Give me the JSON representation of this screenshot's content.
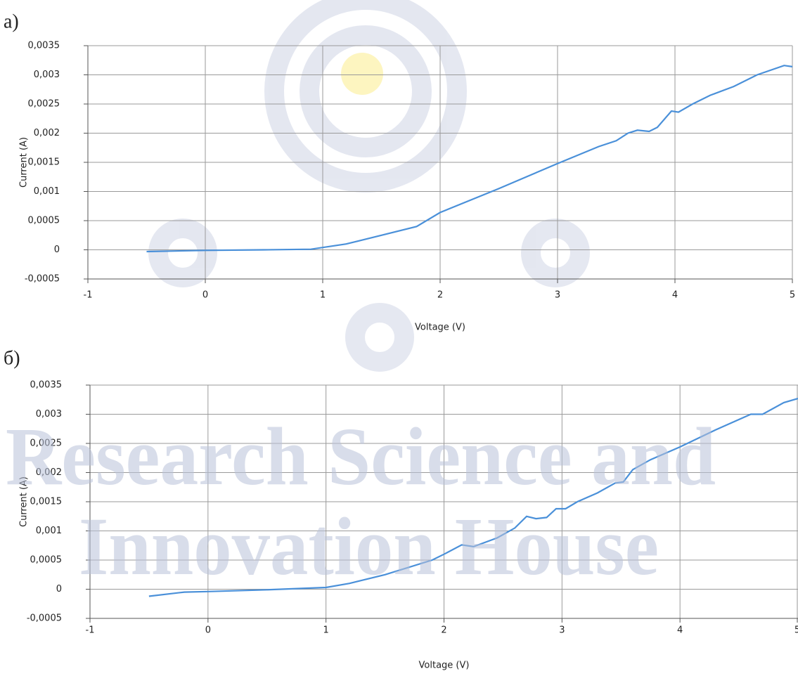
{
  "chart_data": [
    {
      "type": "line",
      "panel_label": "а)",
      "x_label": "Voltage (V)",
      "y_label": "Current (A)",
      "xlim": [
        -1,
        5
      ],
      "ylim": [
        -0.0005,
        0.0035
      ],
      "xticks": [
        -1,
        0,
        1,
        2,
        3,
        4,
        5
      ],
      "yticks": [
        {
          "value": -0.0005,
          "label": "-0,0005"
        },
        0,
        {
          "value": 0.0005,
          "label": "0,0005"
        },
        {
          "value": 0.001,
          "label": "0,001"
        },
        {
          "value": 0.0015,
          "label": "0,0015"
        },
        {
          "value": 0.002,
          "label": "0,002"
        },
        {
          "value": 0.0025,
          "label": "0,0025"
        },
        {
          "value": 0.003,
          "label": "0,003"
        },
        {
          "value": 0.0035,
          "label": "0,0035"
        }
      ],
      "grid": true,
      "color": "#4a90d9",
      "x": [
        -0.5,
        0,
        0.5,
        0.9,
        1.2,
        1.5,
        1.8,
        2.0,
        2.5,
        3.0,
        3.35,
        3.5,
        3.6,
        3.68,
        3.78,
        3.85,
        3.97,
        4.03,
        4.15,
        4.3,
        4.5,
        4.7,
        4.93,
        5.0
      ],
      "values": [
        -3e-05,
        -1e-05,
        0,
        1e-05,
        0.0001,
        0.00025,
        0.0004,
        0.00064,
        0.00105,
        0.00148,
        0.00177,
        0.00187,
        0.002,
        0.00205,
        0.00203,
        0.0021,
        0.00238,
        0.00236,
        0.0025,
        0.00265,
        0.0028,
        0.003,
        0.00316,
        0.00314
      ]
    },
    {
      "type": "line",
      "panel_label": "б)",
      "x_label": "Voltage (V)",
      "y_label": "Current (A)",
      "xlim": [
        -1,
        5
      ],
      "ylim": [
        -0.0005,
        0.0035
      ],
      "xticks": [
        -1,
        0,
        1,
        2,
        3,
        4,
        5
      ],
      "yticks": [
        {
          "value": -0.0005,
          "label": "-0,0005"
        },
        0,
        {
          "value": 0.0005,
          "label": "0,0005"
        },
        {
          "value": 0.001,
          "label": "0,001"
        },
        {
          "value": 0.0015,
          "label": "0,0015"
        },
        {
          "value": 0.002,
          "label": "0,002"
        },
        {
          "value": 0.0025,
          "label": "0,0025"
        },
        {
          "value": 0.003,
          "label": "0,003"
        },
        {
          "value": 0.0035,
          "label": "0,0035"
        }
      ],
      "grid": true,
      "color": "#4a90d9",
      "x": [
        -0.5,
        -0.2,
        0,
        0.5,
        1.0,
        1.2,
        1.5,
        1.9,
        2.0,
        2.15,
        2.25,
        2.45,
        2.6,
        2.7,
        2.78,
        2.87,
        2.95,
        3.03,
        3.13,
        3.3,
        3.45,
        3.52,
        3.6,
        3.75,
        4.0,
        4.3,
        4.6,
        4.7,
        4.88,
        5.0
      ],
      "values": [
        -0.00012,
        -5e-05,
        -4e-05,
        -1e-05,
        3e-05,
        0.0001,
        0.00025,
        0.0005,
        0.0006,
        0.00076,
        0.00073,
        0.00088,
        0.00105,
        0.00125,
        0.00121,
        0.00123,
        0.00138,
        0.00138,
        0.0015,
        0.00165,
        0.00182,
        0.00184,
        0.00205,
        0.00222,
        0.00244,
        0.00273,
        0.003,
        0.003,
        0.0032,
        0.00327
      ]
    }
  ],
  "watermark": [
    "Research Science and",
    "Innovation House"
  ]
}
